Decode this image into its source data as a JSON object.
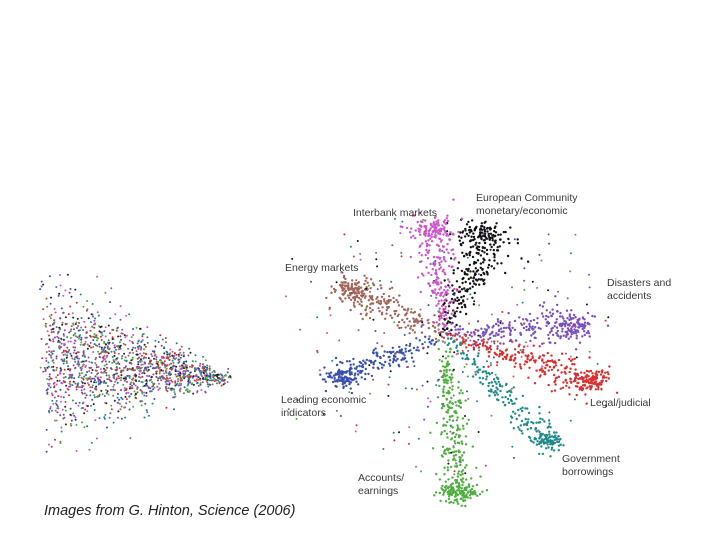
{
  "caption": "Images from G. Hinton, Science (2006)",
  "chart_data": [
    {
      "type": "scatter",
      "title": "",
      "xlabel": "",
      "ylabel": "",
      "grid": false,
      "description_of_marks": "dense point cloud of mixed colors (red, purple, blue, teal, green, black, brown) converging to a tip at the right",
      "point_colors": [
        "#d93030",
        "#7a4fc0",
        "#3a4fb0",
        "#1f8a8a",
        "#4fae3f",
        "#222222",
        "#a0665a",
        "#cc55cc"
      ]
    },
    {
      "type": "scatter",
      "title": "",
      "xlabel": "",
      "ylabel": "",
      "grid": false,
      "series": [
        {
          "name": "European Community monetary/economic",
          "label_lines": [
            "European Community",
            "monetary/economic"
          ],
          "color": "#111111"
        },
        {
          "name": "Interbank markets",
          "label_lines": [
            "Interbank markets"
          ],
          "color": "#cc55cc"
        },
        {
          "name": "Energy markets",
          "label_lines": [
            "Energy markets"
          ],
          "color": "#a0665a"
        },
        {
          "name": "Disasters and accidents",
          "label_lines": [
            "Disasters and",
            "accidents"
          ],
          "color": "#7a4fc0"
        },
        {
          "name": "Leading economic indicators",
          "label_lines": [
            "Leading economic",
            "indicators"
          ],
          "color": "#3a4fb0"
        },
        {
          "name": "Legal/judicial",
          "label_lines": [
            "Legal/judicial"
          ],
          "color": "#d93030"
        },
        {
          "name": "Government borrowings",
          "label_lines": [
            "Government",
            "borrowings"
          ],
          "color": "#1f8a8a"
        },
        {
          "name": "Accounts/ earnings",
          "label_lines": [
            "Accounts/",
            "earnings"
          ],
          "color": "#4fae3f"
        }
      ]
    }
  ]
}
